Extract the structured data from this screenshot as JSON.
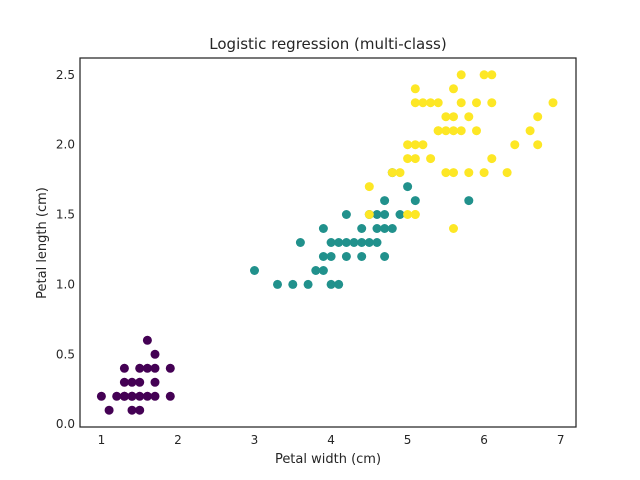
{
  "chart_data": {
    "type": "scatter",
    "title": "Logistic regression (multi-class)",
    "xlabel": "Petal width (cm)",
    "ylabel": "Petal length (cm)",
    "xlim": [
      0.72,
      7.2
    ],
    "ylim": [
      -0.02,
      2.62
    ],
    "xticks": [
      1,
      2,
      3,
      4,
      5,
      6,
      7
    ],
    "xtick_labels": [
      "1",
      "2",
      "3",
      "4",
      "5",
      "6",
      "7"
    ],
    "yticks": [
      0.0,
      0.5,
      1.0,
      1.5,
      2.0,
      2.5
    ],
    "ytick_labels": [
      "0.0",
      "0.5",
      "1.0",
      "1.5",
      "2.0",
      "2.5"
    ],
    "grid": false,
    "colors": [
      "#440154",
      "#21918c",
      "#fde725"
    ],
    "series": [
      {
        "color": "#440154",
        "points": [
          [
            1.0,
            0.2
          ],
          [
            1.1,
            0.1
          ],
          [
            1.2,
            0.2
          ],
          [
            1.3,
            0.2
          ],
          [
            1.3,
            0.3
          ],
          [
            1.3,
            0.4
          ],
          [
            1.4,
            0.1
          ],
          [
            1.4,
            0.2
          ],
          [
            1.4,
            0.3
          ],
          [
            1.5,
            0.1
          ],
          [
            1.5,
            0.2
          ],
          [
            1.5,
            0.3
          ],
          [
            1.5,
            0.4
          ],
          [
            1.6,
            0.2
          ],
          [
            1.6,
            0.4
          ],
          [
            1.6,
            0.6
          ],
          [
            1.7,
            0.2
          ],
          [
            1.7,
            0.3
          ],
          [
            1.7,
            0.4
          ],
          [
            1.7,
            0.5
          ],
          [
            1.9,
            0.2
          ],
          [
            1.9,
            0.4
          ],
          [
            1.3,
            0.2
          ],
          [
            1.4,
            0.2
          ]
        ]
      },
      {
        "color": "#21918c",
        "points": [
          [
            3.0,
            1.1
          ],
          [
            3.3,
            1.0
          ],
          [
            3.5,
            1.0
          ],
          [
            3.6,
            1.3
          ],
          [
            3.7,
            1.0
          ],
          [
            3.8,
            1.1
          ],
          [
            3.9,
            1.1
          ],
          [
            3.9,
            1.2
          ],
          [
            3.9,
            1.4
          ],
          [
            4.0,
            1.0
          ],
          [
            4.0,
            1.2
          ],
          [
            4.0,
            1.3
          ],
          [
            4.1,
            1.0
          ],
          [
            4.1,
            1.3
          ],
          [
            4.2,
            1.2
          ],
          [
            4.2,
            1.3
          ],
          [
            4.2,
            1.5
          ],
          [
            4.3,
            1.3
          ],
          [
            4.4,
            1.2
          ],
          [
            4.4,
            1.3
          ],
          [
            4.4,
            1.4
          ],
          [
            4.5,
            1.3
          ],
          [
            4.5,
            1.5
          ],
          [
            4.6,
            1.3
          ],
          [
            4.6,
            1.4
          ],
          [
            4.6,
            1.5
          ],
          [
            4.7,
            1.2
          ],
          [
            4.7,
            1.4
          ],
          [
            4.7,
            1.5
          ],
          [
            4.7,
            1.6
          ],
          [
            4.8,
            1.4
          ],
          [
            4.8,
            1.8
          ],
          [
            4.9,
            1.5
          ],
          [
            5.0,
            1.7
          ],
          [
            5.1,
            1.6
          ],
          [
            5.8,
            1.6
          ]
        ]
      },
      {
        "color": "#fde725",
        "points": [
          [
            4.5,
            1.7
          ],
          [
            4.9,
            1.8
          ],
          [
            5.0,
            1.5
          ],
          [
            5.1,
            1.5
          ],
          [
            5.1,
            1.9
          ],
          [
            5.1,
            2.0
          ],
          [
            5.1,
            2.3
          ],
          [
            5.1,
            2.4
          ],
          [
            5.0,
            1.9
          ],
          [
            5.0,
            2.0
          ],
          [
            5.2,
            2.0
          ],
          [
            5.2,
            2.3
          ],
          [
            5.3,
            1.9
          ],
          [
            5.3,
            2.3
          ],
          [
            5.4,
            2.1
          ],
          [
            5.4,
            2.3
          ],
          [
            5.5,
            1.8
          ],
          [
            5.5,
            2.1
          ],
          [
            5.5,
            2.2
          ],
          [
            5.6,
            1.4
          ],
          [
            5.6,
            1.8
          ],
          [
            5.6,
            2.1
          ],
          [
            5.6,
            2.2
          ],
          [
            5.6,
            2.4
          ],
          [
            5.7,
            2.1
          ],
          [
            5.7,
            2.3
          ],
          [
            5.7,
            2.5
          ],
          [
            5.8,
            1.8
          ],
          [
            5.8,
            2.2
          ],
          [
            5.9,
            2.1
          ],
          [
            5.9,
            2.3
          ],
          [
            6.0,
            1.8
          ],
          [
            6.0,
            2.5
          ],
          [
            6.1,
            1.9
          ],
          [
            6.1,
            2.3
          ],
          [
            6.1,
            2.5
          ],
          [
            6.3,
            1.8
          ],
          [
            6.4,
            2.0
          ],
          [
            6.6,
            2.1
          ],
          [
            6.7,
            2.0
          ],
          [
            6.7,
            2.2
          ],
          [
            6.9,
            2.3
          ],
          [
            5.4,
            2.1
          ],
          [
            4.8,
            1.8
          ],
          [
            5.1,
            1.5
          ],
          [
            4.5,
            1.5
          ]
        ]
      }
    ]
  }
}
